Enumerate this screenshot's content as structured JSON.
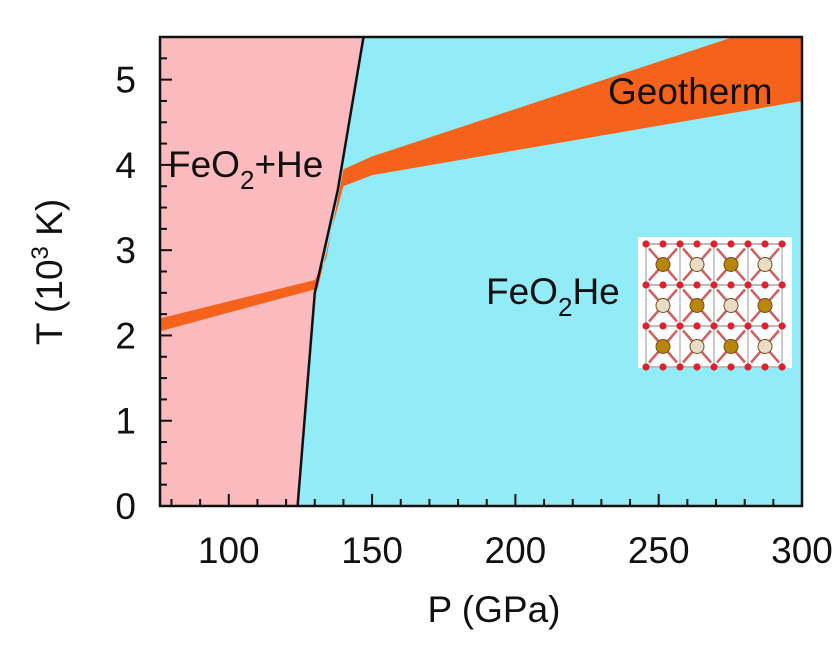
{
  "chart_data": {
    "type": "area",
    "title": "",
    "xlabel": "P (GPa)",
    "ylabel_main": "T (10",
    "ylabel_sup": "3",
    "ylabel_end": " K)",
    "xlim": [
      76,
      300
    ],
    "ylim": [
      0,
      5.5
    ],
    "xticks": [
      100,
      150,
      200,
      250,
      300
    ],
    "yticks": [
      0,
      1,
      2,
      3,
      4,
      5
    ],
    "grid": false,
    "colors": {
      "feo2_he_region": "#fbbabd",
      "feo2he_region": "#92ecf8",
      "geotherm": "#f5621c",
      "boundary": "#111111"
    },
    "phase_boundary": [
      [
        124,
        0
      ],
      [
        130,
        2.5
      ],
      [
        138,
        3.7
      ],
      [
        147,
        5.5
      ]
    ],
    "geotherm_band": {
      "upper": [
        [
          76,
          2.2
        ],
        [
          130,
          2.65
        ],
        [
          134,
          2.9
        ],
        [
          140,
          3.95
        ],
        [
          150,
          4.1
        ],
        [
          276,
          5.5
        ],
        [
          300,
          5.5
        ]
      ],
      "lower": [
        [
          300,
          4.75
        ],
        [
          150,
          3.88
        ],
        [
          140,
          3.75
        ],
        [
          136,
          3.25
        ],
        [
          131,
          2.55
        ],
        [
          76,
          2.05
        ]
      ]
    },
    "labels": {
      "region1_main": "FeO",
      "region1_sub": "2",
      "region1_end": "+He",
      "region2_main": "FeO",
      "region2_sub": "2",
      "region2_end": "He",
      "geotherm": "Geotherm"
    },
    "inset": "FeO2He crystal structure (Fe, O, He atoms)"
  }
}
